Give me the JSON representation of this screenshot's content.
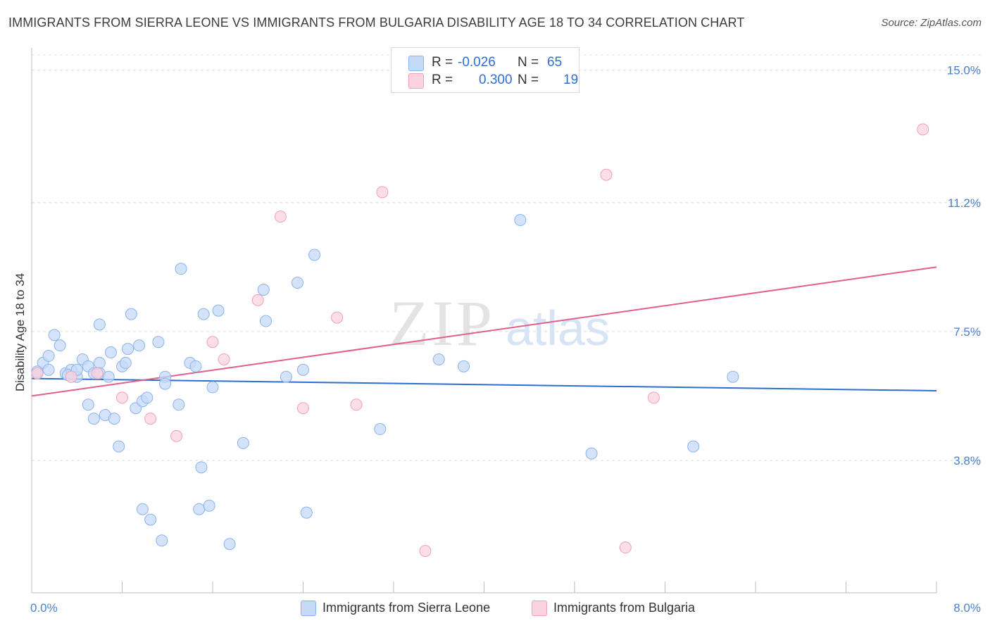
{
  "title": "IMMIGRANTS FROM SIERRA LEONE VS IMMIGRANTS FROM BULGARIA DISABILITY AGE 18 TO 34 CORRELATION CHART",
  "source": "Source: ZipAtlas.com",
  "watermark": {
    "zip": "ZIP",
    "atlas": "atlas"
  },
  "legend_top": {
    "rows": [
      {
        "r_label": "R =",
        "r_value": "-0.026",
        "n_label": "N =",
        "n_value": "65",
        "color": "#8ab4ee",
        "fill": "#c5daf7"
      },
      {
        "r_label": "R =",
        "r_value": "0.300",
        "n_label": "N =",
        "n_value": "19",
        "color": "#f0a0b8",
        "fill": "#fbd3de"
      }
    ]
  },
  "legend_bottom": [
    {
      "label": "Immigrants from Sierra Leone",
      "color": "#8ab4ee",
      "fill": "#c5daf7"
    },
    {
      "label": "Immigrants from Bulgaria",
      "color": "#f0a0b8",
      "fill": "#fbd3de"
    }
  ],
  "chart_data": {
    "type": "scatter",
    "title": "IMMIGRANTS FROM SIERRA LEONE VS IMMIGRANTS FROM BULGARIA DISABILITY AGE 18 TO 34 CORRELATION CHART",
    "xlabel": "",
    "ylabel": "Disability Age 18 to 34",
    "xlim": [
      0,
      8.0
    ],
    "ylim": [
      0,
      15.5
    ],
    "x_tick_labels": [
      "0.0%",
      "8.0%"
    ],
    "y_ticks": [
      3.8,
      7.5,
      11.2,
      15.0
    ],
    "y_tick_labels": [
      "3.8%",
      "7.5%",
      "11.2%",
      "15.0%"
    ],
    "grid": true,
    "series": [
      {
        "name": "Immigrants from Sierra Leone",
        "color": "#8ab4ee",
        "fill": "#c5daf7",
        "line_color": "#2b6fd0",
        "trend": {
          "x": [
            0.0,
            8.0
          ],
          "y": [
            6.15,
            5.8
          ]
        },
        "points": [
          {
            "x": 0.05,
            "y": 6.3
          },
          {
            "x": 0.1,
            "y": 6.6
          },
          {
            "x": 0.15,
            "y": 6.8
          },
          {
            "x": 0.15,
            "y": 6.4
          },
          {
            "x": 0.2,
            "y": 7.4
          },
          {
            "x": 0.25,
            "y": 7.1
          },
          {
            "x": 0.3,
            "y": 6.3
          },
          {
            "x": 0.35,
            "y": 6.4
          },
          {
            "x": 0.4,
            "y": 6.2
          },
          {
            "x": 0.4,
            "y": 6.4
          },
          {
            "x": 0.45,
            "y": 6.7
          },
          {
            "x": 0.5,
            "y": 6.5
          },
          {
            "x": 0.5,
            "y": 5.4
          },
          {
            "x": 0.55,
            "y": 6.3
          },
          {
            "x": 0.6,
            "y": 6.6
          },
          {
            "x": 0.55,
            "y": 5.0
          },
          {
            "x": 0.65,
            "y": 5.1
          },
          {
            "x": 0.6,
            "y": 6.3
          },
          {
            "x": 0.6,
            "y": 7.7
          },
          {
            "x": 0.68,
            "y": 6.2
          },
          {
            "x": 0.7,
            "y": 6.9
          },
          {
            "x": 0.73,
            "y": 5.0
          },
          {
            "x": 0.77,
            "y": 4.2
          },
          {
            "x": 0.8,
            "y": 6.5
          },
          {
            "x": 0.83,
            "y": 6.6
          },
          {
            "x": 0.85,
            "y": 7.0
          },
          {
            "x": 0.88,
            "y": 8.0
          },
          {
            "x": 0.92,
            "y": 5.3
          },
          {
            "x": 0.95,
            "y": 7.1
          },
          {
            "x": 0.98,
            "y": 5.5
          },
          {
            "x": 1.02,
            "y": 5.6
          },
          {
            "x": 0.98,
            "y": 2.4
          },
          {
            "x": 1.05,
            "y": 2.1
          },
          {
            "x": 1.12,
            "y": 7.2
          },
          {
            "x": 1.15,
            "y": 1.5
          },
          {
            "x": 1.18,
            "y": 6.2
          },
          {
            "x": 1.18,
            "y": 6.0
          },
          {
            "x": 1.3,
            "y": 5.4
          },
          {
            "x": 1.32,
            "y": 9.3
          },
          {
            "x": 1.4,
            "y": 6.6
          },
          {
            "x": 1.45,
            "y": 6.5
          },
          {
            "x": 1.5,
            "y": 3.6
          },
          {
            "x": 1.48,
            "y": 2.4
          },
          {
            "x": 1.52,
            "y": 8.0
          },
          {
            "x": 1.57,
            "y": 2.5
          },
          {
            "x": 1.6,
            "y": 5.9
          },
          {
            "x": 1.65,
            "y": 8.1
          },
          {
            "x": 1.75,
            "y": 1.4
          },
          {
            "x": 1.87,
            "y": 4.3
          },
          {
            "x": 2.05,
            "y": 8.7
          },
          {
            "x": 2.07,
            "y": 7.8
          },
          {
            "x": 2.25,
            "y": 6.2
          },
          {
            "x": 2.35,
            "y": 8.9
          },
          {
            "x": 2.4,
            "y": 6.4
          },
          {
            "x": 2.43,
            "y": 2.3
          },
          {
            "x": 2.5,
            "y": 9.7
          },
          {
            "x": 3.08,
            "y": 4.7
          },
          {
            "x": 3.6,
            "y": 6.7
          },
          {
            "x": 3.82,
            "y": 6.5
          },
          {
            "x": 4.32,
            "y": 10.7
          },
          {
            "x": 4.95,
            "y": 4.0
          },
          {
            "x": 5.85,
            "y": 4.2
          },
          {
            "x": 6.2,
            "y": 6.2
          },
          {
            "x": 0.05,
            "y": 6.35
          },
          {
            "x": 0.32,
            "y": 6.25
          }
        ]
      },
      {
        "name": "Immigrants from Bulgaria",
        "color": "#f0a0b8",
        "fill": "#fbd3de",
        "line_color": "#e0608a",
        "trend": {
          "x": [
            0.0,
            8.0
          ],
          "y": [
            5.65,
            9.35
          ]
        },
        "points": [
          {
            "x": 0.05,
            "y": 6.3
          },
          {
            "x": 0.35,
            "y": 6.2
          },
          {
            "x": 0.58,
            "y": 6.3
          },
          {
            "x": 0.8,
            "y": 5.6
          },
          {
            "x": 1.05,
            "y": 5.0
          },
          {
            "x": 1.28,
            "y": 4.5
          },
          {
            "x": 1.6,
            "y": 7.2
          },
          {
            "x": 1.7,
            "y": 6.7
          },
          {
            "x": 2.0,
            "y": 8.4
          },
          {
            "x": 2.2,
            "y": 10.8
          },
          {
            "x": 2.4,
            "y": 5.3
          },
          {
            "x": 2.7,
            "y": 7.9
          },
          {
            "x": 2.87,
            "y": 5.4
          },
          {
            "x": 3.1,
            "y": 11.5
          },
          {
            "x": 3.48,
            "y": 1.2
          },
          {
            "x": 5.08,
            "y": 12.0
          },
          {
            "x": 5.25,
            "y": 1.3
          },
          {
            "x": 5.5,
            "y": 5.6
          },
          {
            "x": 7.88,
            "y": 13.3
          }
        ]
      }
    ]
  }
}
